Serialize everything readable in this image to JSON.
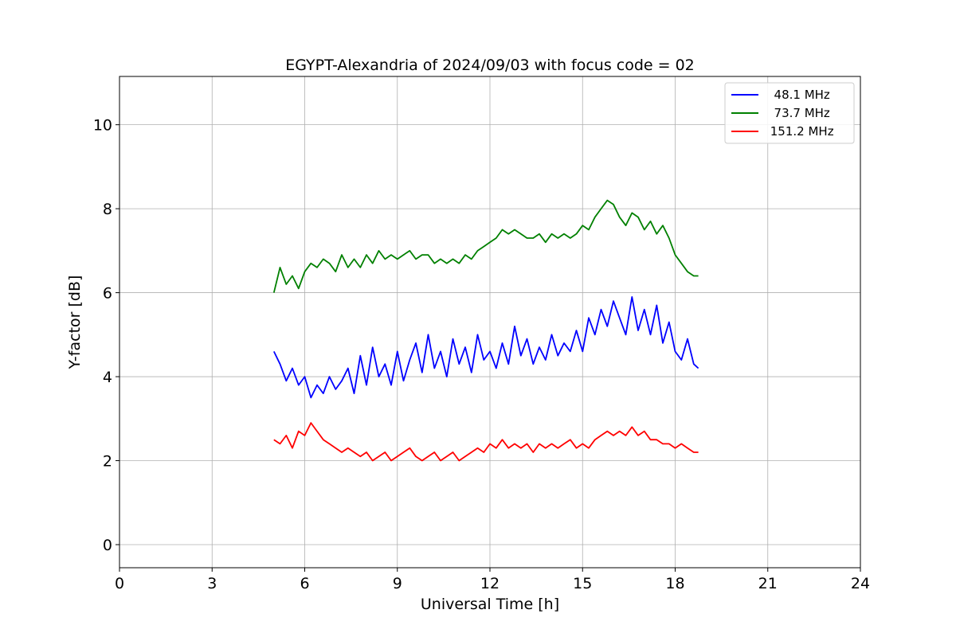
{
  "chart_data": {
    "type": "line",
    "title": "EGYPT-Alexandria of 2024/09/03 with focus code = 02",
    "xlabel": "Universal Time [h]",
    "ylabel": "Y-factor [dB]",
    "xlim": [
      0,
      24
    ],
    "ylim": [
      -0.55,
      11.15
    ],
    "xticks": [
      0,
      3,
      6,
      9,
      12,
      15,
      18,
      21,
      24
    ],
    "yticks": [
      0,
      2,
      4,
      6,
      8,
      10
    ],
    "grid": true,
    "legend_position": "top-right",
    "series": [
      {
        "name": "  48.1 MHz",
        "color": "#0000ff",
        "x": [
          5.0,
          5.2,
          5.4,
          5.6,
          5.8,
          6.0,
          6.2,
          6.4,
          6.6,
          6.8,
          7.0,
          7.2,
          7.4,
          7.6,
          7.8,
          8.0,
          8.2,
          8.4,
          8.6,
          8.8,
          9.0,
          9.2,
          9.4,
          9.6,
          9.8,
          10.0,
          10.2,
          10.4,
          10.6,
          10.8,
          11.0,
          11.2,
          11.4,
          11.6,
          11.8,
          12.0,
          12.2,
          12.4,
          12.6,
          12.8,
          13.0,
          13.2,
          13.4,
          13.6,
          13.8,
          14.0,
          14.2,
          14.4,
          14.6,
          14.8,
          15.0,
          15.2,
          15.4,
          15.6,
          15.8,
          16.0,
          16.2,
          16.4,
          16.6,
          16.8,
          17.0,
          17.2,
          17.4,
          17.6,
          17.8,
          18.0,
          18.2,
          18.4,
          18.6,
          18.75
        ],
        "y": [
          4.6,
          4.3,
          3.9,
          4.2,
          3.8,
          4.0,
          3.5,
          3.8,
          3.6,
          4.0,
          3.7,
          3.9,
          4.2,
          3.6,
          4.5,
          3.8,
          4.7,
          4.0,
          4.3,
          3.8,
          4.6,
          3.9,
          4.4,
          4.8,
          4.1,
          5.0,
          4.2,
          4.6,
          4.0,
          4.9,
          4.3,
          4.7,
          4.1,
          5.0,
          4.4,
          4.6,
          4.2,
          4.8,
          4.3,
          5.2,
          4.5,
          4.9,
          4.3,
          4.7,
          4.4,
          5.0,
          4.5,
          4.8,
          4.6,
          5.1,
          4.6,
          5.4,
          5.0,
          5.6,
          5.2,
          5.8,
          5.4,
          5.0,
          5.9,
          5.1,
          5.6,
          5.0,
          5.7,
          4.8,
          5.3,
          4.6,
          4.4,
          4.9,
          4.3,
          4.2
        ]
      },
      {
        "name": "  73.7 MHz",
        "color": "#008000",
        "x": [
          5.0,
          5.2,
          5.4,
          5.6,
          5.8,
          6.0,
          6.2,
          6.4,
          6.6,
          6.8,
          7.0,
          7.2,
          7.4,
          7.6,
          7.8,
          8.0,
          8.2,
          8.4,
          8.6,
          8.8,
          9.0,
          9.2,
          9.4,
          9.6,
          9.8,
          10.0,
          10.2,
          10.4,
          10.6,
          10.8,
          11.0,
          11.2,
          11.4,
          11.6,
          11.8,
          12.0,
          12.2,
          12.4,
          12.6,
          12.8,
          13.0,
          13.2,
          13.4,
          13.6,
          13.8,
          14.0,
          14.2,
          14.4,
          14.6,
          14.8,
          15.0,
          15.2,
          15.4,
          15.6,
          15.8,
          16.0,
          16.2,
          16.4,
          16.6,
          16.8,
          17.0,
          17.2,
          17.4,
          17.6,
          17.8,
          18.0,
          18.2,
          18.4,
          18.6,
          18.75
        ],
        "y": [
          6.0,
          6.6,
          6.2,
          6.4,
          6.1,
          6.5,
          6.7,
          6.6,
          6.8,
          6.7,
          6.5,
          6.9,
          6.6,
          6.8,
          6.6,
          6.9,
          6.7,
          7.0,
          6.8,
          6.9,
          6.8,
          6.9,
          7.0,
          6.8,
          6.9,
          6.9,
          6.7,
          6.8,
          6.7,
          6.8,
          6.7,
          6.9,
          6.8,
          7.0,
          7.1,
          7.2,
          7.3,
          7.5,
          7.4,
          7.5,
          7.4,
          7.3,
          7.3,
          7.4,
          7.2,
          7.4,
          7.3,
          7.4,
          7.3,
          7.4,
          7.6,
          7.5,
          7.8,
          8.0,
          8.2,
          8.1,
          7.8,
          7.6,
          7.9,
          7.8,
          7.5,
          7.7,
          7.4,
          7.6,
          7.3,
          6.9,
          6.7,
          6.5,
          6.4,
          6.4
        ]
      },
      {
        "name": " 151.2 MHz",
        "color": "#ff0000",
        "x": [
          5.0,
          5.2,
          5.4,
          5.6,
          5.8,
          6.0,
          6.2,
          6.4,
          6.6,
          6.8,
          7.0,
          7.2,
          7.4,
          7.6,
          7.8,
          8.0,
          8.2,
          8.4,
          8.6,
          8.8,
          9.0,
          9.2,
          9.4,
          9.6,
          9.8,
          10.0,
          10.2,
          10.4,
          10.6,
          10.8,
          11.0,
          11.2,
          11.4,
          11.6,
          11.8,
          12.0,
          12.2,
          12.4,
          12.6,
          12.8,
          13.0,
          13.2,
          13.4,
          13.6,
          13.8,
          14.0,
          14.2,
          14.4,
          14.6,
          14.8,
          15.0,
          15.2,
          15.4,
          15.6,
          15.8,
          16.0,
          16.2,
          16.4,
          16.6,
          16.8,
          17.0,
          17.2,
          17.4,
          17.6,
          17.8,
          18.0,
          18.2,
          18.4,
          18.6,
          18.75
        ],
        "y": [
          2.5,
          2.4,
          2.6,
          2.3,
          2.7,
          2.6,
          2.9,
          2.7,
          2.5,
          2.4,
          2.3,
          2.2,
          2.3,
          2.2,
          2.1,
          2.2,
          2.0,
          2.1,
          2.2,
          2.0,
          2.1,
          2.2,
          2.3,
          2.1,
          2.0,
          2.1,
          2.2,
          2.0,
          2.1,
          2.2,
          2.0,
          2.1,
          2.2,
          2.3,
          2.2,
          2.4,
          2.3,
          2.5,
          2.3,
          2.4,
          2.3,
          2.4,
          2.2,
          2.4,
          2.3,
          2.4,
          2.3,
          2.4,
          2.5,
          2.3,
          2.4,
          2.3,
          2.5,
          2.6,
          2.7,
          2.6,
          2.7,
          2.6,
          2.8,
          2.6,
          2.7,
          2.5,
          2.5,
          2.4,
          2.4,
          2.3,
          2.4,
          2.3,
          2.2,
          2.2
        ]
      }
    ]
  }
}
